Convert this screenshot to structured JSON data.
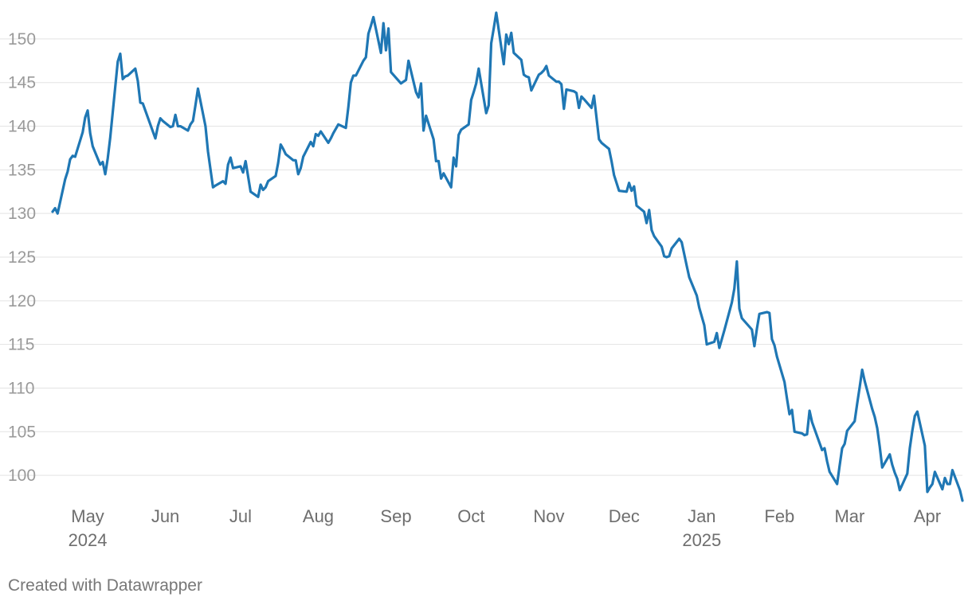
{
  "chart_data": {
    "type": "line",
    "title": "",
    "xlabel": "",
    "ylabel": "",
    "ylim": [
      97,
      153
    ],
    "yticks": [
      100,
      105,
      110,
      115,
      120,
      125,
      130,
      135,
      140,
      145,
      150
    ],
    "xlim": [
      "2024-04-17",
      "2025-04-15"
    ],
    "xticks": [
      {
        "date": "2024-05-01",
        "label": "May",
        "sublabel": "2024"
      },
      {
        "date": "2024-06-01",
        "label": "Jun",
        "sublabel": ""
      },
      {
        "date": "2024-07-01",
        "label": "Jul",
        "sublabel": ""
      },
      {
        "date": "2024-08-01",
        "label": "Aug",
        "sublabel": ""
      },
      {
        "date": "2024-09-01",
        "label": "Sep",
        "sublabel": ""
      },
      {
        "date": "2024-10-01",
        "label": "Oct",
        "sublabel": ""
      },
      {
        "date": "2024-11-01",
        "label": "Nov",
        "sublabel": ""
      },
      {
        "date": "2024-12-01",
        "label": "Dec",
        "sublabel": ""
      },
      {
        "date": "2025-01-01",
        "label": "Jan",
        "sublabel": "2025"
      },
      {
        "date": "2025-02-01",
        "label": "Feb",
        "sublabel": ""
      },
      {
        "date": "2025-03-01",
        "label": "Mar",
        "sublabel": ""
      },
      {
        "date": "2025-04-01",
        "label": "Apr",
        "sublabel": ""
      }
    ],
    "grid": true,
    "legend": "none",
    "color": "#1f77b4",
    "series": [
      {
        "x": [
          "2024-04-17",
          "2024-04-18",
          "2024-04-19",
          "2024-04-22",
          "2024-04-23",
          "2024-04-24",
          "2024-04-25",
          "2024-04-26",
          "2024-04-29",
          "2024-04-30",
          "2024-05-01",
          "2024-05-02",
          "2024-05-03",
          "2024-05-06",
          "2024-05-07",
          "2024-05-08",
          "2024-05-09",
          "2024-05-10",
          "2024-05-13",
          "2024-05-14",
          "2024-05-15",
          "2024-05-16",
          "2024-05-17",
          "2024-05-20",
          "2024-05-21",
          "2024-05-22",
          "2024-05-23",
          "2024-05-24",
          "2024-05-28",
          "2024-05-29",
          "2024-05-30",
          "2024-05-31",
          "2024-06-03",
          "2024-06-04",
          "2024-06-05",
          "2024-06-06",
          "2024-06-07",
          "2024-06-10",
          "2024-06-11",
          "2024-06-12",
          "2024-06-13",
          "2024-06-14",
          "2024-06-17",
          "2024-06-18",
          "2024-06-20",
          "2024-06-21",
          "2024-06-24",
          "2024-06-25",
          "2024-06-26",
          "2024-06-27",
          "2024-06-28",
          "2024-07-01",
          "2024-07-02",
          "2024-07-03",
          "2024-07-05",
          "2024-07-08",
          "2024-07-09",
          "2024-07-10",
          "2024-07-11",
          "2024-07-12",
          "2024-07-15",
          "2024-07-16",
          "2024-07-17",
          "2024-07-18",
          "2024-07-19",
          "2024-07-22",
          "2024-07-23",
          "2024-07-24",
          "2024-07-25",
          "2024-07-26",
          "2024-07-29",
          "2024-07-30",
          "2024-07-31",
          "2024-08-01",
          "2024-08-02",
          "2024-08-05",
          "2024-08-06",
          "2024-08-07",
          "2024-08-08",
          "2024-08-09",
          "2024-08-12",
          "2024-08-13",
          "2024-08-14",
          "2024-08-15",
          "2024-08-16",
          "2024-08-19",
          "2024-08-20",
          "2024-08-21",
          "2024-08-22",
          "2024-08-23",
          "2024-08-26",
          "2024-08-27",
          "2024-08-28",
          "2024-08-29",
          "2024-08-30",
          "2024-09-03",
          "2024-09-04",
          "2024-09-05",
          "2024-09-06",
          "2024-09-09",
          "2024-09-10",
          "2024-09-11",
          "2024-09-12",
          "2024-09-13",
          "2024-09-16",
          "2024-09-17",
          "2024-09-18",
          "2024-09-19",
          "2024-09-20",
          "2024-09-23",
          "2024-09-24",
          "2024-09-25",
          "2024-09-26",
          "2024-09-27",
          "2024-09-30",
          "2024-10-01",
          "2024-10-02",
          "2024-10-03",
          "2024-10-04",
          "2024-10-07",
          "2024-10-08",
          "2024-10-09",
          "2024-10-10",
          "2024-10-11",
          "2024-10-14",
          "2024-10-15",
          "2024-10-16",
          "2024-10-17",
          "2024-10-18",
          "2024-10-21",
          "2024-10-22",
          "2024-10-23",
          "2024-10-24",
          "2024-10-25",
          "2024-10-28",
          "2024-10-29",
          "2024-10-30",
          "2024-10-31",
          "2024-11-01",
          "2024-11-04",
          "2024-11-05",
          "2024-11-06",
          "2024-11-07",
          "2024-11-08",
          "2024-11-11",
          "2024-11-12",
          "2024-11-13",
          "2024-11-14",
          "2024-11-15",
          "2024-11-18",
          "2024-11-19",
          "2024-11-20",
          "2024-11-21",
          "2024-11-22",
          "2024-11-25",
          "2024-11-26",
          "2024-11-27",
          "2024-11-29",
          "2024-12-02",
          "2024-12-03",
          "2024-12-04",
          "2024-12-05",
          "2024-12-06",
          "2024-12-09",
          "2024-12-10",
          "2024-12-11",
          "2024-12-12",
          "2024-12-13",
          "2024-12-16",
          "2024-12-17",
          "2024-12-18",
          "2024-12-19",
          "2024-12-20",
          "2024-12-23",
          "2024-12-24",
          "2024-12-26",
          "2024-12-27",
          "2024-12-30",
          "2024-12-31",
          "2025-01-02",
          "2025-01-03",
          "2025-01-06",
          "2025-01-07",
          "2025-01-08",
          "2025-01-10",
          "2025-01-13",
          "2025-01-14",
          "2025-01-15",
          "2025-01-16",
          "2025-01-17",
          "2025-01-21",
          "2025-01-22",
          "2025-01-23",
          "2025-01-24",
          "2025-01-27",
          "2025-01-28",
          "2025-01-29",
          "2025-01-30",
          "2025-01-31",
          "2025-02-03",
          "2025-02-04",
          "2025-02-05",
          "2025-02-06",
          "2025-02-07",
          "2025-02-10",
          "2025-02-11",
          "2025-02-12",
          "2025-02-13",
          "2025-02-14",
          "2025-02-18",
          "2025-02-19",
          "2025-02-20",
          "2025-02-21",
          "2025-02-24",
          "2025-02-25",
          "2025-02-26",
          "2025-02-27",
          "2025-02-28",
          "2025-03-03",
          "2025-03-04",
          "2025-03-05",
          "2025-03-06",
          "2025-03-07",
          "2025-03-10",
          "2025-03-11",
          "2025-03-12",
          "2025-03-13",
          "2025-03-14",
          "2025-03-17",
          "2025-03-18",
          "2025-03-19",
          "2025-03-20",
          "2025-03-21",
          "2025-03-24",
          "2025-03-25",
          "2025-03-26",
          "2025-03-27",
          "2025-03-28",
          "2025-03-31",
          "2025-04-01",
          "2025-04-02",
          "2025-04-03",
          "2025-04-04",
          "2025-04-07",
          "2025-04-08",
          "2025-04-09",
          "2025-04-10",
          "2025-04-11",
          "2025-04-14",
          "2025-04-15"
        ],
        "y": [
          130.2,
          130.6,
          130.0,
          133.9,
          134.8,
          136.2,
          136.6,
          136.5,
          139.3,
          141.0,
          141.8,
          139.2,
          137.7,
          135.6,
          135.9,
          134.5,
          136.3,
          138.7,
          147.4,
          148.3,
          145.4,
          145.7,
          145.8,
          146.6,
          145.2,
          142.7,
          142.6,
          141.8,
          138.6,
          140.0,
          140.9,
          140.6,
          139.9,
          140.0,
          141.3,
          140.0,
          140.0,
          139.5,
          140.2,
          140.6,
          142.4,
          144.3,
          140.0,
          137.1,
          133.0,
          133.2,
          133.7,
          133.4,
          135.6,
          136.4,
          135.2,
          135.4,
          134.7,
          136.0,
          132.5,
          131.9,
          133.3,
          132.7,
          133.0,
          133.7,
          134.3,
          135.8,
          137.9,
          137.4,
          136.8,
          136.1,
          136.1,
          134.5,
          135.2,
          136.5,
          138.2,
          137.7,
          139.1,
          138.9,
          139.4,
          138.1,
          138.6,
          139.2,
          139.7,
          140.2,
          139.8,
          142.2,
          145.0,
          145.8,
          145.8,
          147.5,
          147.9,
          150.6,
          151.5,
          152.5,
          148.4,
          151.8,
          148.7,
          151.2,
          146.2,
          144.9,
          145.1,
          145.3,
          147.5,
          143.9,
          143.3,
          144.9,
          139.5,
          141.2,
          138.5,
          136.0,
          136.0,
          134.0,
          134.6,
          133.0,
          136.4,
          135.4,
          139.0,
          139.6,
          140.2,
          143.0,
          143.9,
          144.9,
          146.6,
          141.5,
          142.4,
          149.5,
          151.2,
          153.0,
          147.1,
          150.5,
          149.4,
          150.7,
          148.4,
          147.6,
          145.9,
          145.7,
          145.6,
          144.1,
          145.9,
          146.1,
          146.4,
          146.9,
          145.8,
          145.1,
          145.1,
          144.8,
          142.0,
          144.2,
          144.0,
          143.8,
          142.1,
          143.4,
          143.1,
          142.1,
          143.5,
          141.0,
          138.5,
          138.1,
          137.4,
          136.0,
          134.4,
          132.6,
          132.5,
          133.5,
          132.6,
          133.1,
          130.9,
          130.2,
          128.9,
          130.4,
          128.1,
          127.4,
          126.2,
          125.1,
          125.0,
          125.1,
          126.0,
          127.1,
          126.7,
          124.0,
          122.7,
          120.6,
          119.2,
          117.2,
          115.0,
          115.3,
          116.3,
          114.6,
          116.6,
          119.8,
          121.4,
          124.5,
          119.1,
          118.0,
          116.7,
          114.8,
          116.8,
          118.5,
          118.7,
          118.6,
          115.6,
          114.9,
          113.6,
          110.7,
          108.8,
          107.0,
          107.5,
          105.0,
          104.8,
          104.6,
          104.7,
          107.4,
          106.1,
          102.9,
          103.1,
          101.6,
          100.4,
          99.0,
          101.1,
          103.1,
          103.6,
          105.1,
          106.2,
          108.2,
          110.1,
          112.1,
          110.8,
          107.6,
          106.7,
          105.4,
          103.3,
          100.9,
          102.4,
          101.2,
          100.3,
          99.6,
          98.3,
          100.2,
          103.1,
          105.1,
          106.8,
          107.3,
          103.4,
          98.1,
          98.6,
          99.0,
          100.4,
          98.4,
          99.7,
          99.0,
          99.0,
          100.6,
          98.3,
          97.1
        ]
      }
    ]
  },
  "footer": {
    "credit": "Created with Datawrapper"
  }
}
